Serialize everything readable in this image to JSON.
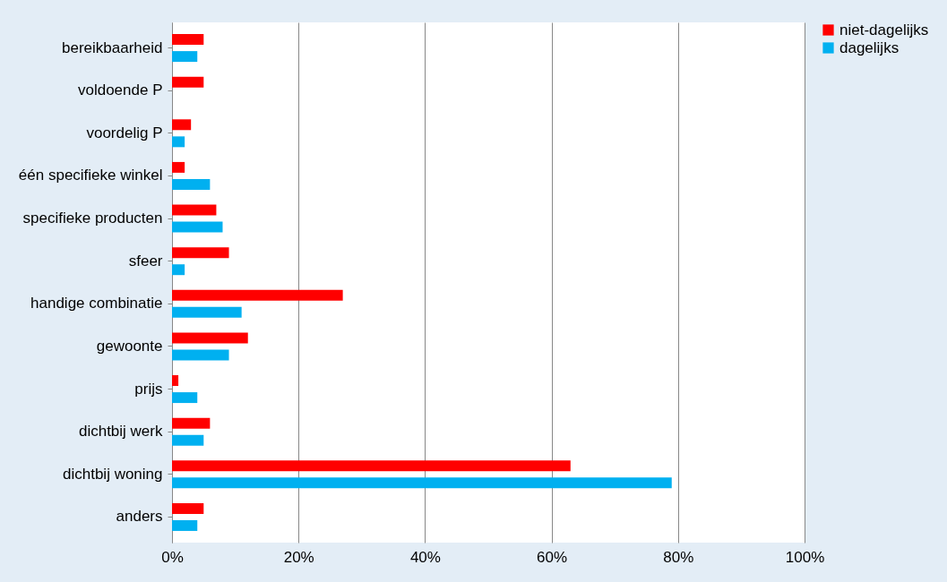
{
  "chart_data": {
    "type": "bar",
    "orientation": "horizontal",
    "categories": [
      "bereikbaarheid",
      "voldoende P",
      "voordelig P",
      "één specifieke winkel",
      "specifieke producten",
      "sfeer",
      "handige combinatie",
      "gewoonte",
      "prijs",
      "dichtbij werk",
      "dichtbij woning",
      "anders"
    ],
    "series": [
      {
        "name": "niet-dagelijks",
        "color": "#ff0000",
        "values": [
          5,
          5,
          3,
          2,
          7,
          9,
          27,
          12,
          1,
          6,
          63,
          5
        ]
      },
      {
        "name": "dagelijks",
        "color": "#00b0f0",
        "values": [
          4,
          0,
          2,
          6,
          8,
          2,
          11,
          9,
          4,
          5,
          79,
          4
        ]
      }
    ],
    "xlim": [
      0,
      100
    ],
    "xticks": [
      {
        "value": 0,
        "label": "0%"
      },
      {
        "value": 20,
        "label": "20%"
      },
      {
        "value": 40,
        "label": "40%"
      },
      {
        "value": 60,
        "label": "60%"
      },
      {
        "value": 80,
        "label": "80%"
      },
      {
        "value": 100,
        "label": "100%"
      }
    ],
    "grid": "x",
    "legend": "right"
  }
}
